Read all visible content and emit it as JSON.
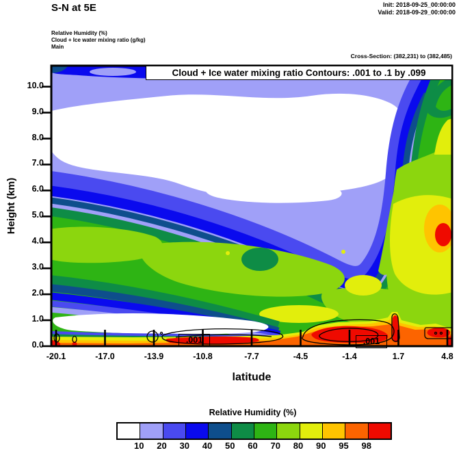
{
  "header": {
    "title": "S-N at 5E",
    "init_label": "Init: 2018-09-25_00:00:00",
    "valid_label": "Valid: 2018-09-29_00:00:00"
  },
  "legend": {
    "line1": "Relative Humidity (%)",
    "line2": "Cloud + Ice water mixing ratio (g/kg)",
    "line3": "Main"
  },
  "cross_section": "Cross-Section: (382,231) to (382,485)",
  "plot": {
    "inner_title": "Cloud + Ice water mixing ratio Contours: .001 to .1 by .099",
    "xlabel": "latitude",
    "ylabel": "Height (km)",
    "contour_labels": [
      ".001",
      ".001"
    ]
  },
  "chart_data": {
    "type": "heatmap",
    "subtype": "filled-contour-vertical-cross-section",
    "title": "Cloud + Ice water mixing ratio Contours: .001 to .1 by .099",
    "xlabel": "latitude",
    "ylabel": "Height (km)",
    "xlim": [
      -20.1,
      4.8
    ],
    "ylim": [
      0,
      10.8
    ],
    "x_ticks": [
      -20.1,
      -17.0,
      -13.9,
      -10.8,
      -7.7,
      -4.5,
      -1.4,
      1.7,
      4.8
    ],
    "y_ticks": [
      0,
      1,
      2,
      3,
      4,
      5,
      6,
      7,
      8,
      9,
      10
    ],
    "x_tick_labels": [
      "-20.1",
      "-17.0",
      "-13.9",
      "-10.8",
      "-7.7",
      "-4.5",
      "-1.4",
      "1.7",
      "4.8"
    ],
    "y_tick_labels": [
      "0.0",
      "1.0",
      "2.0",
      "3.0",
      "4.0",
      "5.0",
      "6.0",
      "7.0",
      "8.0",
      "9.0",
      "10.0"
    ],
    "fill_field": {
      "name": "Relative Humidity",
      "units": "%"
    },
    "contour_field": {
      "name": "Cloud + Ice water mixing ratio",
      "units": "g/kg",
      "levels": [
        0.001,
        0.1
      ],
      "interval": 0.099,
      "labels": [
        ".001",
        ".001"
      ]
    },
    "colorbar": {
      "title": "Relative Humidity (%)",
      "tick_labels": [
        "10",
        "20",
        "30",
        "40",
        "50",
        "60",
        "70",
        "80",
        "90",
        "95",
        "98"
      ],
      "colors": [
        "#FFFFFF",
        "#A0A0F8",
        "#4A4AF0",
        "#0A0AEE",
        "#0E4E8C",
        "#0E8C46",
        "#2EB414",
        "#8CD60E",
        "#E2EE0C",
        "#FFC400",
        "#FC6400",
        "#EF0A00"
      ],
      "position": "bottom"
    },
    "grid": false,
    "rh_grid_estimate": {
      "lats": [
        -20.1,
        -17.0,
        -13.9,
        -10.8,
        -7.7,
        -4.5,
        -1.4,
        1.7,
        4.8
      ],
      "heights_km": [
        0,
        1,
        2,
        3,
        4,
        5,
        6,
        7,
        8,
        9,
        10
      ],
      "values_percent": [
        [
          93,
          93,
          97,
          99,
          93,
          93,
          99,
          93,
          97
        ],
        [
          5,
          5,
          5,
          5,
          15,
          65,
          85,
          85,
          85
        ],
        [
          25,
          15,
          25,
          35,
          45,
          65,
          75,
          85,
          85
        ],
        [
          35,
          45,
          55,
          65,
          75,
          65,
          75,
          85,
          85
        ],
        [
          75,
          65,
          75,
          75,
          65,
          65,
          65,
          75,
          95
        ],
        [
          65,
          75,
          65,
          55,
          45,
          45,
          55,
          65,
          85
        ],
        [
          45,
          25,
          25,
          25,
          25,
          35,
          45,
          65,
          75
        ],
        [
          15,
          5,
          15,
          15,
          15,
          25,
          35,
          55,
          75
        ],
        [
          5,
          5,
          5,
          5,
          5,
          15,
          25,
          45,
          75
        ],
        [
          15,
          5,
          5,
          5,
          10,
          15,
          15,
          35,
          65
        ],
        [
          35,
          25,
          15,
          10,
          15,
          20,
          30,
          45,
          65
        ]
      ]
    }
  }
}
